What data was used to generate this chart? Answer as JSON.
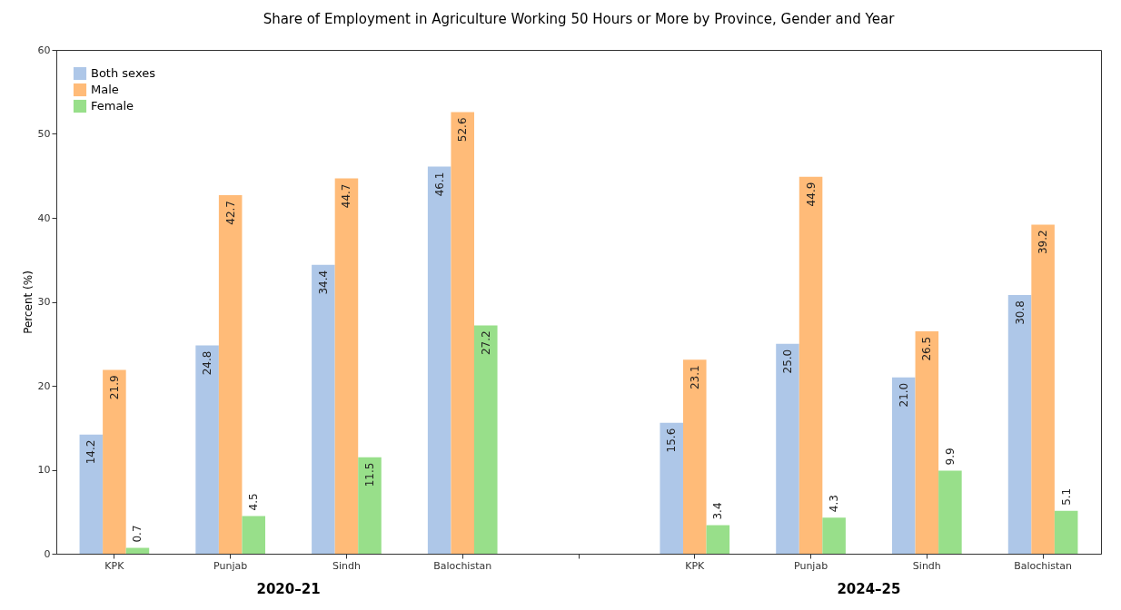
{
  "chart_data": {
    "type": "bar",
    "title": "Share of Employment in Agriculture Working 50 Hours or More by Province, Gender and Year",
    "ylabel": "Percent (%)",
    "categories": [
      "KPK",
      "Punjab",
      "Sindh",
      "Balochistan",
      null,
      "KPK",
      "Punjab",
      "Sindh",
      "Balochistan"
    ],
    "series": [
      {
        "name": "Both sexes",
        "color": "#aec7e8",
        "values": [
          14.2,
          24.8,
          34.4,
          46.1,
          null,
          15.6,
          25.0,
          21.0,
          30.8
        ],
        "value_labels": [
          "14.2",
          "24.8",
          "34.4",
          "46.1",
          null,
          "15.6",
          "25.0",
          "21.0",
          "30.8"
        ]
      },
      {
        "name": "Male",
        "color": "#ffbb78",
        "values": [
          21.9,
          42.7,
          44.7,
          52.6,
          null,
          23.1,
          44.9,
          26.5,
          39.2
        ],
        "value_labels": [
          "21.9",
          "42.7",
          "44.7",
          "52.6",
          null,
          "23.1",
          "44.9",
          "26.5",
          "39.2"
        ]
      },
      {
        "name": "Female",
        "color": "#98df8a",
        "values": [
          0.7,
          4.5,
          11.5,
          27.2,
          null,
          3.4,
          4.3,
          9.9,
          5.1
        ],
        "value_labels": [
          "0.7",
          "4.5",
          "11.5",
          "27.2",
          null,
          "3.4",
          "4.3",
          "9.9",
          "5.1"
        ]
      }
    ],
    "ylim": [
      0,
      60
    ],
    "yticks": [
      0,
      10,
      20,
      30,
      40,
      50,
      60
    ],
    "grid": false,
    "legend": "top left",
    "annotations": [
      "2020–21",
      "2024–25"
    ]
  }
}
